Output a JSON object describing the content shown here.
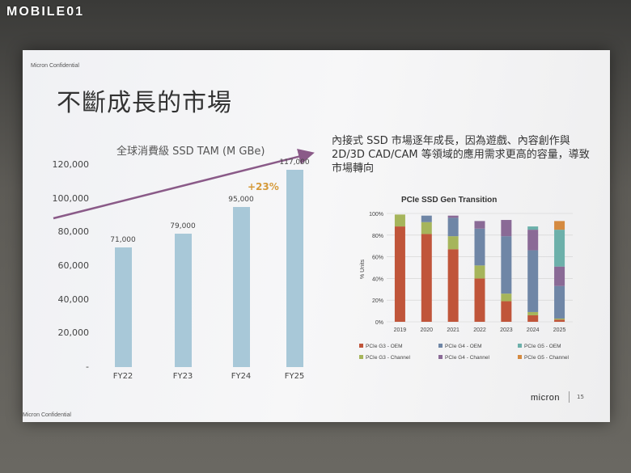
{
  "watermark": "MOBILE01",
  "slide": {
    "confidential_top": "Micron Confidential",
    "confidential_bottom": "Micron Confidential",
    "title": "不斷成長的市場",
    "description": "內接式 SSD 市場逐年成長，因為遊戲、內容創作與 2D/3D CAD/CAM 等領域的應用需求更高的容量，導致市場轉向",
    "logo": "micron",
    "page_number": "15"
  },
  "chart_data": [
    {
      "type": "bar",
      "title": "全球消費級 SSD TAM (M GBe)",
      "categories": [
        "FY22",
        "FY23",
        "FY24",
        "FY25"
      ],
      "values": [
        71000,
        79000,
        95000,
        117000
      ],
      "value_labels": [
        "71,000",
        "79,000",
        "95,000",
        "117,000"
      ],
      "y_ticks": [
        "120,000",
        "100,000",
        "80,000",
        "60,000",
        "40,000",
        "20,000",
        "-"
      ],
      "ylim": [
        0,
        120000
      ],
      "annotation": "+23%",
      "colors": {
        "bar": "#a8c8d8",
        "arrow": "#8a5a88",
        "annotation": "#d59a3a"
      }
    },
    {
      "type": "bar",
      "stacked": true,
      "title": "PCIe SSD Gen Transition",
      "ylabel": "% Units",
      "categories": [
        "2019",
        "2020",
        "2021",
        "2022",
        "2023",
        "2024",
        "2025"
      ],
      "y_ticks": [
        "100%",
        "80%",
        "60%",
        "40%",
        "20%",
        "0%"
      ],
      "ylim": [
        0,
        100
      ],
      "series": [
        {
          "name": "PCIe G3 - OEM",
          "color": "#c0553a",
          "values": [
            88,
            81,
            67,
            40,
            19,
            6,
            2
          ]
        },
        {
          "name": "PCIe G3 - Channel",
          "color": "#a6b55b",
          "values": [
            11,
            11,
            12,
            12,
            7,
            3,
            1
          ]
        },
        {
          "name": "PCIe G4 - OEM",
          "color": "#6f86a6",
          "values": [
            0,
            6,
            17,
            34,
            53,
            57,
            30
          ]
        },
        {
          "name": "PCIe G4 - Channel",
          "color": "#8a6a96",
          "values": [
            0,
            0,
            2,
            7,
            15,
            19,
            18
          ]
        },
        {
          "name": "PCIe G5 - OEM",
          "color": "#6cb0aa",
          "values": [
            0,
            0,
            0,
            0,
            0,
            3,
            34
          ]
        },
        {
          "name": "PCIe G5 - Channel",
          "color": "#d58a40",
          "values": [
            0,
            0,
            0,
            0,
            0,
            0,
            8
          ]
        }
      ]
    }
  ]
}
